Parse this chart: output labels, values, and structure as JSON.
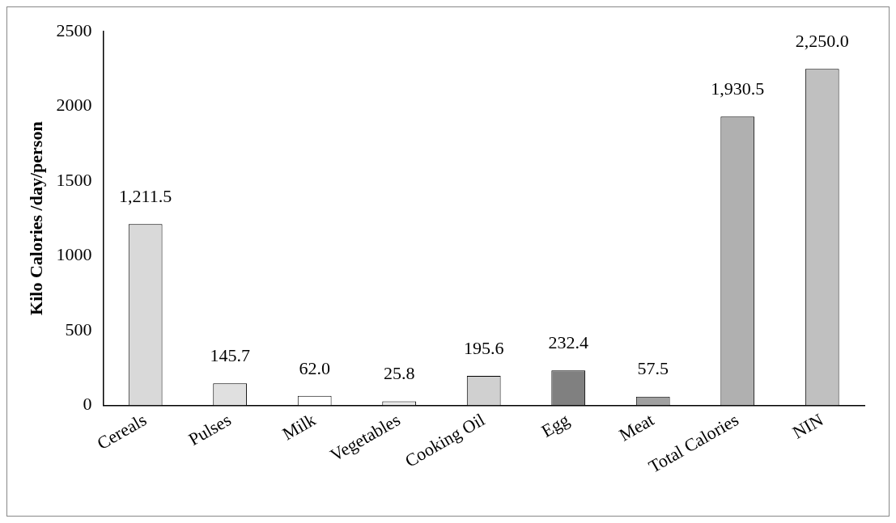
{
  "chart_data": {
    "type": "bar",
    "ylabel": "Kilo Calories /day/person",
    "categories": [
      "Cereals",
      "Pulses",
      "Milk",
      "Vegetables",
      "Cooking Oil",
      "Egg",
      "Meat",
      "Total Calories",
      "NIN"
    ],
    "values": [
      1211.5,
      145.7,
      62.0,
      25.8,
      195.6,
      232.4,
      57.5,
      1930.5,
      2250.0
    ],
    "colors": [
      "#d9d9d9",
      "#e0e0e0",
      "#ffffff",
      "#e8e8e8",
      "#d0d0d0",
      "#808080",
      "#a0a0a0",
      "#b0b0b0",
      "#c0c0c0"
    ],
    "value_labels": [
      "1,211.5",
      "145.7",
      "62.0",
      "25.8",
      "195.6",
      "232.4",
      "57.5",
      "1,930.5",
      "2,250.0"
    ],
    "ylim": [
      0,
      2500
    ],
    "yticks": [
      0,
      500,
      1000,
      1500,
      2000,
      2500
    ],
    "grid": false,
    "legend": false
  }
}
